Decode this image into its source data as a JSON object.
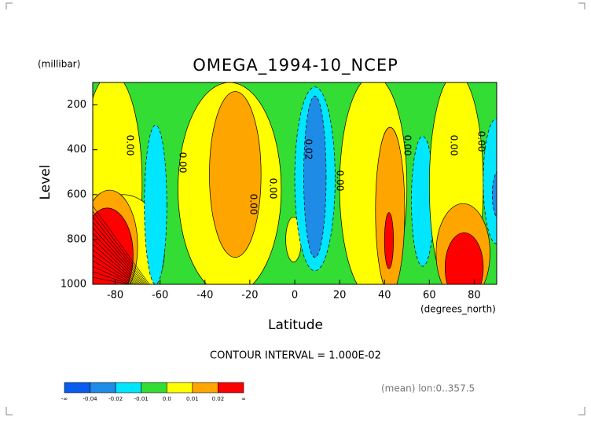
{
  "chart_data": {
    "type": "contour",
    "title": "OMEGA_1994-10_NCEP",
    "y_units": "(millibar)",
    "x_units": "(degrees_north)",
    "xlabel": "Latitude",
    "ylabel": "Level",
    "xlim": [
      -90,
      90
    ],
    "xticks": [
      -80,
      -60,
      -40,
      -20,
      0,
      20,
      40,
      60,
      80
    ],
    "ylim": [
      1000,
      100
    ],
    "yticks": [
      200,
      400,
      600,
      800,
      1000
    ],
    "contour_interval_text": "CONTOUR INTERVAL = 1.000E-02",
    "footnote": "(mean) lon:0..357.5",
    "contour_labels": [
      "0.00",
      "0.00",
      "0.00",
      "0.00",
      "0.02",
      "0.00",
      "0.00",
      "0.00",
      "0.00"
    ],
    "colorbar": {
      "colors": [
        "#0a5cf0",
        "#1e8ce6",
        "#00e6ff",
        "#33dd33",
        "#ffff00",
        "#ffa500",
        "#ff0000"
      ],
      "labels": [
        "-∞",
        "-0.04",
        "-0.02",
        "-0.01",
        "0.0",
        "0.01",
        "0.02",
        "∞"
      ]
    }
  }
}
